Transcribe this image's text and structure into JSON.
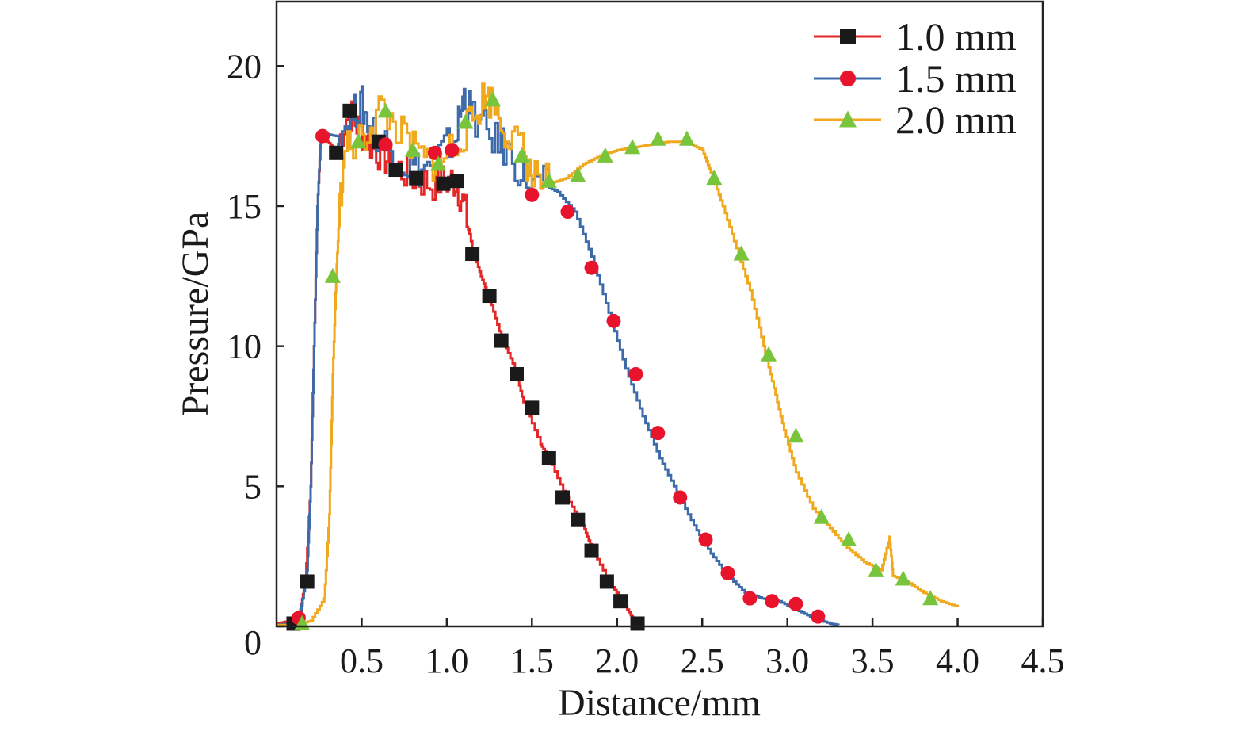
{
  "chart_data": {
    "type": "line",
    "title": "",
    "xlabel": "Distance/mm",
    "ylabel": "Pressure/GPa",
    "xlim": [
      0,
      4.5
    ],
    "ylim": [
      0,
      22.3
    ],
    "xticks": [
      0.5,
      1.0,
      1.5,
      2.0,
      2.5,
      3.0,
      3.5,
      4.0,
      4.5
    ],
    "xtick_labels": [
      "0.5",
      "1.0",
      "1.5",
      "2.0",
      "2.5",
      "3.0",
      "3.5",
      "4.0",
      "4.5"
    ],
    "yticks": [
      0,
      5,
      10,
      15,
      20
    ],
    "ytick_labels": [
      "0",
      "5",
      "10",
      "15",
      "20"
    ],
    "grid": false,
    "legend_position": "top-right",
    "series": [
      {
        "name": "1.0 mm",
        "label": "1.0 mm",
        "line_color": "#e32626",
        "marker": "square",
        "marker_color": "#1a1a1a",
        "line": [
          [
            0,
            0.1
          ],
          [
            0.08,
            0.2
          ],
          [
            0.14,
            0.6
          ],
          [
            0.17,
            1.7
          ],
          [
            0.2,
            5
          ],
          [
            0.22,
            10
          ],
          [
            0.24,
            15
          ],
          [
            0.26,
            17.5
          ],
          [
            0.3,
            17.3
          ],
          [
            0.35,
            17
          ],
          [
            0.42,
            18.4
          ],
          [
            0.48,
            17.8
          ],
          [
            0.55,
            17.2
          ],
          [
            0.62,
            16.8
          ],
          [
            0.7,
            16.4
          ],
          [
            0.8,
            16
          ],
          [
            0.9,
            15.8
          ],
          [
            1.0,
            15.9
          ],
          [
            1.05,
            15.9
          ],
          [
            1.1,
            15
          ],
          [
            1.15,
            13.5
          ],
          [
            1.2,
            12.5
          ],
          [
            1.25,
            11.7
          ],
          [
            1.32,
            10.3
          ],
          [
            1.4,
            9.2
          ],
          [
            1.45,
            8
          ],
          [
            1.55,
            6.5
          ],
          [
            1.6,
            6
          ],
          [
            1.7,
            4.6
          ],
          [
            1.8,
            3.6
          ],
          [
            1.85,
            2.8
          ],
          [
            1.95,
            1.6
          ],
          [
            2.02,
            1
          ],
          [
            2.08,
            0.4
          ],
          [
            2.12,
            0.1
          ]
        ],
        "markers_x": [
          0.1,
          0.18,
          0.35,
          0.43,
          0.6,
          0.7,
          0.82,
          0.98,
          1.06,
          1.15,
          1.25,
          1.32,
          1.41,
          1.5,
          1.6,
          1.68,
          1.77,
          1.85,
          1.94,
          2.02,
          2.12
        ],
        "markers_y": [
          0.1,
          1.6,
          16.9,
          18.4,
          17.3,
          16.3,
          16,
          15.8,
          15.9,
          13.3,
          11.8,
          10.2,
          9,
          7.8,
          6,
          4.6,
          3.8,
          2.7,
          1.6,
          0.9,
          0.1
        ]
      },
      {
        "name": "1.5 mm",
        "label": "1.5 mm",
        "line_color": "#3d6aa8",
        "marker": "circle",
        "marker_color": "#e8142c",
        "line": [
          [
            0,
            0.05
          ],
          [
            0.08,
            0.1
          ],
          [
            0.14,
            0.5
          ],
          [
            0.18,
            2
          ],
          [
            0.2,
            5
          ],
          [
            0.22,
            10
          ],
          [
            0.24,
            15
          ],
          [
            0.26,
            17.6
          ],
          [
            0.35,
            17.5
          ],
          [
            0.45,
            18.3
          ],
          [
            0.5,
            18.6
          ],
          [
            0.55,
            17.8
          ],
          [
            0.65,
            17.2
          ],
          [
            0.75,
            16.5
          ],
          [
            0.85,
            16.3
          ],
          [
            0.95,
            16.8
          ],
          [
            1.05,
            17.5
          ],
          [
            1.1,
            19
          ],
          [
            1.15,
            18.2
          ],
          [
            1.25,
            17.5
          ],
          [
            1.35,
            17
          ],
          [
            1.45,
            16
          ],
          [
            1.55,
            15.8
          ],
          [
            1.65,
            15.5
          ],
          [
            1.75,
            14.8
          ],
          [
            1.85,
            13.2
          ],
          [
            1.95,
            11.2
          ],
          [
            2.05,
            9.2
          ],
          [
            2.15,
            7.5
          ],
          [
            2.25,
            6
          ],
          [
            2.35,
            4.8
          ],
          [
            2.45,
            3.6
          ],
          [
            2.55,
            2.6
          ],
          [
            2.65,
            1.8
          ],
          [
            2.75,
            1.2
          ],
          [
            2.85,
            1
          ],
          [
            2.95,
            0.9
          ],
          [
            3.05,
            0.6
          ],
          [
            3.15,
            0.3
          ],
          [
            3.25,
            0.1
          ],
          [
            3.3,
            0.05
          ]
        ],
        "markers_x": [
          0.13,
          0.27,
          0.64,
          0.93,
          1.03,
          1.5,
          1.71,
          1.85,
          1.98,
          2.11,
          2.24,
          2.37,
          2.52,
          2.65,
          2.78,
          2.91,
          3.05,
          3.18
        ],
        "markers_y": [
          0.3,
          17.5,
          17.2,
          16.9,
          17,
          15.4,
          14.8,
          12.8,
          10.9,
          9,
          6.9,
          4.6,
          3.1,
          1.9,
          1,
          0.9,
          0.8,
          0.35
        ]
      },
      {
        "name": "2.0 mm",
        "label": "2.0 mm",
        "line_color": "#f0a81c",
        "marker": "triangle",
        "marker_color": "#78c43a",
        "line": [
          [
            0,
            0.05
          ],
          [
            0.1,
            0.05
          ],
          [
            0.2,
            0.2
          ],
          [
            0.28,
            1
          ],
          [
            0.31,
            4
          ],
          [
            0.33,
            9
          ],
          [
            0.35,
            12.5
          ],
          [
            0.37,
            15
          ],
          [
            0.4,
            17
          ],
          [
            0.5,
            17.3
          ],
          [
            0.6,
            18.5
          ],
          [
            0.7,
            17.8
          ],
          [
            0.8,
            17
          ],
          [
            0.9,
            16.5
          ],
          [
            0.95,
            16.6
          ],
          [
            1.05,
            17.3
          ],
          [
            1.15,
            18
          ],
          [
            1.22,
            19
          ],
          [
            1.28,
            18.6
          ],
          [
            1.35,
            17.6
          ],
          [
            1.45,
            16.9
          ],
          [
            1.5,
            16
          ],
          [
            1.6,
            15.8
          ],
          [
            1.7,
            16
          ],
          [
            1.8,
            16.5
          ],
          [
            1.9,
            16.8
          ],
          [
            2.0,
            17
          ],
          [
            2.1,
            17.1
          ],
          [
            2.2,
            17.2
          ],
          [
            2.3,
            17.3
          ],
          [
            2.4,
            17.3
          ],
          [
            2.5,
            17
          ],
          [
            2.55,
            16.2
          ],
          [
            2.62,
            15
          ],
          [
            2.7,
            13.5
          ],
          [
            2.78,
            12
          ],
          [
            2.86,
            10
          ],
          [
            2.92,
            8.5
          ],
          [
            2.98,
            7
          ],
          [
            3.05,
            5.5
          ],
          [
            3.15,
            4.2
          ],
          [
            3.25,
            3.5
          ],
          [
            3.35,
            2.8
          ],
          [
            3.45,
            2.3
          ],
          [
            3.55,
            2
          ],
          [
            3.6,
            3.2
          ],
          [
            3.62,
            1.8
          ],
          [
            3.7,
            1.6
          ],
          [
            3.8,
            1.2
          ],
          [
            3.9,
            0.9
          ],
          [
            4.0,
            0.7
          ]
        ],
        "markers_x": [
          0.15,
          0.33,
          0.48,
          0.64,
          0.8,
          0.95,
          1.11,
          1.27,
          1.44,
          1.6,
          1.77,
          1.93,
          2.09,
          2.24,
          2.41,
          2.57,
          2.73,
          2.89,
          3.05,
          3.2,
          3.36,
          3.52,
          3.68,
          3.84
        ],
        "markers_y": [
          0.1,
          12.5,
          17.3,
          18.4,
          17,
          16.5,
          18,
          18.8,
          16.8,
          15.9,
          16.1,
          16.8,
          17.1,
          17.4,
          17.4,
          16,
          13.3,
          9.7,
          6.8,
          3.9,
          3.1,
          2,
          1.7,
          1
        ]
      }
    ]
  }
}
